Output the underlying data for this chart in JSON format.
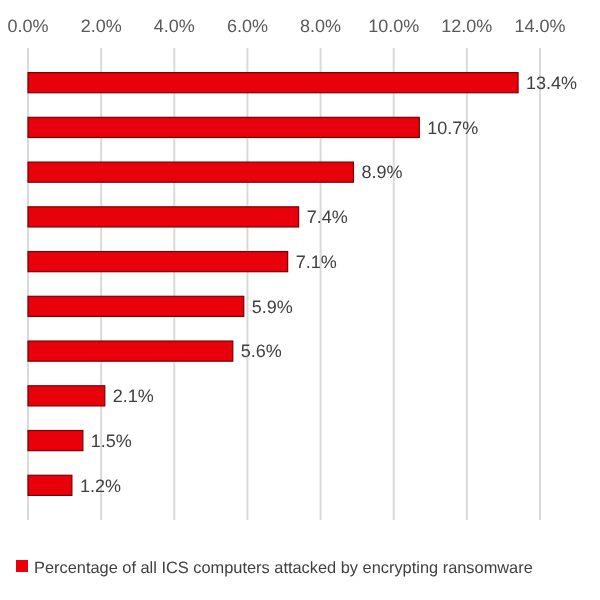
{
  "chart_data": {
    "type": "bar",
    "orientation": "horizontal",
    "categories": [
      null,
      null,
      null,
      null,
      null,
      null,
      null,
      null,
      null,
      null
    ],
    "series": [
      {
        "name": "Percentage of all ICS computers attacked by encrypting ransomware",
        "color": "#e8000b",
        "values": [
          13.4,
          10.7,
          8.9,
          7.4,
          7.1,
          5.9,
          5.6,
          2.1,
          1.5,
          1.2
        ]
      }
    ],
    "value_labels": [
      "13.4%",
      "10.7%",
      "8.9%",
      "7.4%",
      "7.1%",
      "5.9%",
      "5.6%",
      "2.1%",
      "1.5%",
      "1.2%"
    ],
    "xlim": [
      0,
      14
    ],
    "xticks": [
      {
        "value": 0,
        "label": "0.0%"
      },
      {
        "value": 2,
        "label": "2.0%"
      },
      {
        "value": 4,
        "label": "4.0%"
      },
      {
        "value": 6,
        "label": "6.0%"
      },
      {
        "value": 8,
        "label": "8.0%"
      },
      {
        "value": 10,
        "label": "10.0%"
      },
      {
        "value": 12,
        "label": "12.0%"
      },
      {
        "value": 14,
        "label": "14.0%"
      }
    ],
    "grid": "x",
    "legend": "bottom"
  }
}
